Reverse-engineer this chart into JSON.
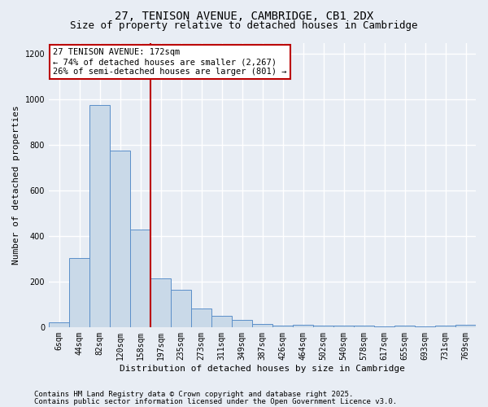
{
  "title_line1": "27, TENISON AVENUE, CAMBRIDGE, CB1 2DX",
  "title_line2": "Size of property relative to detached houses in Cambridge",
  "xlabel": "Distribution of detached houses by size in Cambridge",
  "ylabel": "Number of detached properties",
  "categories": [
    "6sqm",
    "44sqm",
    "82sqm",
    "120sqm",
    "158sqm",
    "197sqm",
    "235sqm",
    "273sqm",
    "311sqm",
    "349sqm",
    "387sqm",
    "426sqm",
    "464sqm",
    "502sqm",
    "540sqm",
    "578sqm",
    "617sqm",
    "655sqm",
    "693sqm",
    "731sqm",
    "769sqm"
  ],
  "bar_values": [
    22,
    305,
    975,
    775,
    430,
    215,
    165,
    80,
    50,
    30,
    15,
    5,
    10,
    5,
    5,
    5,
    2,
    5,
    2,
    5,
    10
  ],
  "bar_color": "#c9d9e8",
  "bar_edge_color": "#5b8fc9",
  "bg_color": "#e8edf4",
  "grid_color": "#ffffff",
  "vline_x_index": 4.5,
  "vline_color": "#bb0000",
  "annotation_text": "27 TENISON AVENUE: 172sqm\n← 74% of detached houses are smaller (2,267)\n26% of semi-detached houses are larger (801) →",
  "annotation_box_color": "#bb0000",
  "ylim": [
    0,
    1250
  ],
  "yticks": [
    0,
    200,
    400,
    600,
    800,
    1000,
    1200
  ],
  "footer_line1": "Contains HM Land Registry data © Crown copyright and database right 2025.",
  "footer_line2": "Contains public sector information licensed under the Open Government Licence v3.0.",
  "title_fontsize": 10,
  "subtitle_fontsize": 9,
  "axis_label_fontsize": 8,
  "tick_fontsize": 7,
  "annotation_fontsize": 7.5,
  "footer_fontsize": 6.5
}
